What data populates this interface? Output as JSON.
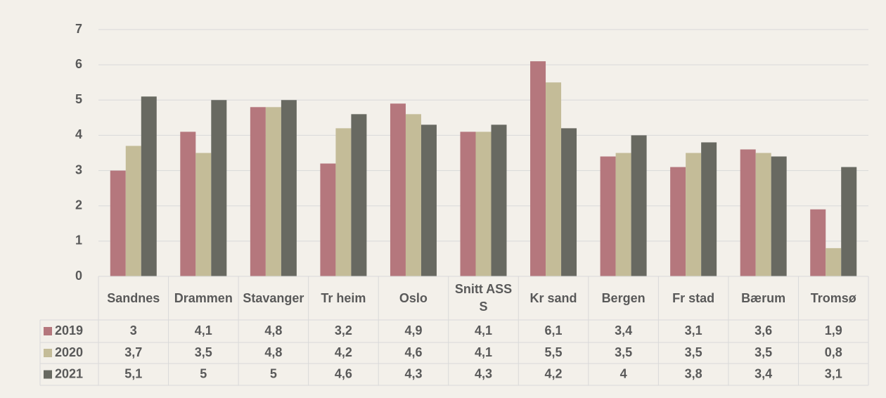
{
  "chart_data": {
    "type": "bar",
    "categories": [
      "Sandnes",
      "Drammen",
      "Stavanger",
      "Tr heim",
      "Oslo",
      "Snitt ASSS",
      "Kr sand",
      "Bergen",
      "Fr stad",
      "Bærum",
      "Tromsø"
    ],
    "series": [
      {
        "name": "2019",
        "color": "#b5777d",
        "values": [
          3,
          4.1,
          4.8,
          3.2,
          4.9,
          4.1,
          6.1,
          3.4,
          3.1,
          3.6,
          1.9
        ],
        "value_labels": [
          "3",
          "4,1",
          "4,8",
          "3,2",
          "4,9",
          "4,1",
          "6,1",
          "3,4",
          "3,1",
          "3,6",
          "1,9"
        ]
      },
      {
        "name": "2020",
        "color": "#c4bc98",
        "values": [
          3.7,
          3.5,
          4.8,
          4.2,
          4.6,
          4.1,
          5.5,
          3.5,
          3.5,
          3.5,
          0.8
        ],
        "value_labels": [
          "3,7",
          "3,5",
          "4,8",
          "4,2",
          "4,6",
          "4,1",
          "5,5",
          "3,5",
          "3,5",
          "3,5",
          "0,8"
        ]
      },
      {
        "name": "2021",
        "color": "#686961",
        "values": [
          5.1,
          5,
          5,
          4.6,
          4.3,
          4.3,
          4.2,
          4,
          3.8,
          3.4,
          3.1
        ],
        "value_labels": [
          "5,1",
          "5",
          "5",
          "4,6",
          "4,3",
          "4,3",
          "4,2",
          "4",
          "3,8",
          "3,4",
          "3,1"
        ]
      }
    ],
    "ylim": [
      0,
      7
    ],
    "yticks": [
      0,
      1,
      2,
      3,
      4,
      5,
      6,
      7
    ],
    "grid": true,
    "data_table": true
  }
}
